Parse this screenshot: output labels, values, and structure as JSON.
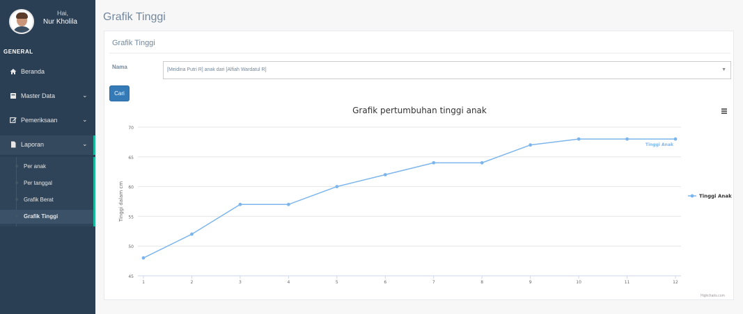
{
  "sidebar": {
    "greeting": "Hai,",
    "username": "Nur Kholila",
    "section_title": "GENERAL",
    "items": [
      {
        "label": "Beranda",
        "icon": "home-icon"
      },
      {
        "label": "Master Data",
        "icon": "database-icon"
      },
      {
        "label": "Pemeriksaan",
        "icon": "edit-icon"
      },
      {
        "label": "Laporan",
        "icon": "file-icon"
      }
    ],
    "sub_items": [
      {
        "label": "Per anak"
      },
      {
        "label": "Per tanggal"
      },
      {
        "label": "Grafik Berat"
      },
      {
        "label": "Grafik Tinggi"
      }
    ],
    "accent_color": "#1abb9c",
    "bg_color": "#2a3f54"
  },
  "page": {
    "title": "Grafik Tinggi",
    "panel_title": "Grafik Tinggi",
    "form": {
      "label": "Nama",
      "selected": "[Meidina Putri R] anak dari [Alfiah Wardatul R]",
      "button": "Cari"
    },
    "credits": "Highcharts.com"
  },
  "chart_data": {
    "type": "line",
    "title": "Grafik pertumbuhan tinggi anak",
    "ylabel": "Tinggi dalam cm",
    "xlabel": "",
    "x": [
      1,
      2,
      3,
      4,
      5,
      6,
      7,
      8,
      9,
      10,
      11,
      12
    ],
    "series": [
      {
        "name": "Tinggi Anak",
        "values": [
          48,
          52,
          57,
          57,
          60,
          62,
          64,
          64,
          67,
          68,
          68,
          68
        ],
        "color": "#7cb5ec"
      }
    ],
    "ylim": [
      45,
      70
    ],
    "yticks": [
      45,
      50,
      55,
      60,
      65,
      70
    ],
    "grid": true,
    "legend": "right",
    "end_label": "Tinggi Anak"
  }
}
